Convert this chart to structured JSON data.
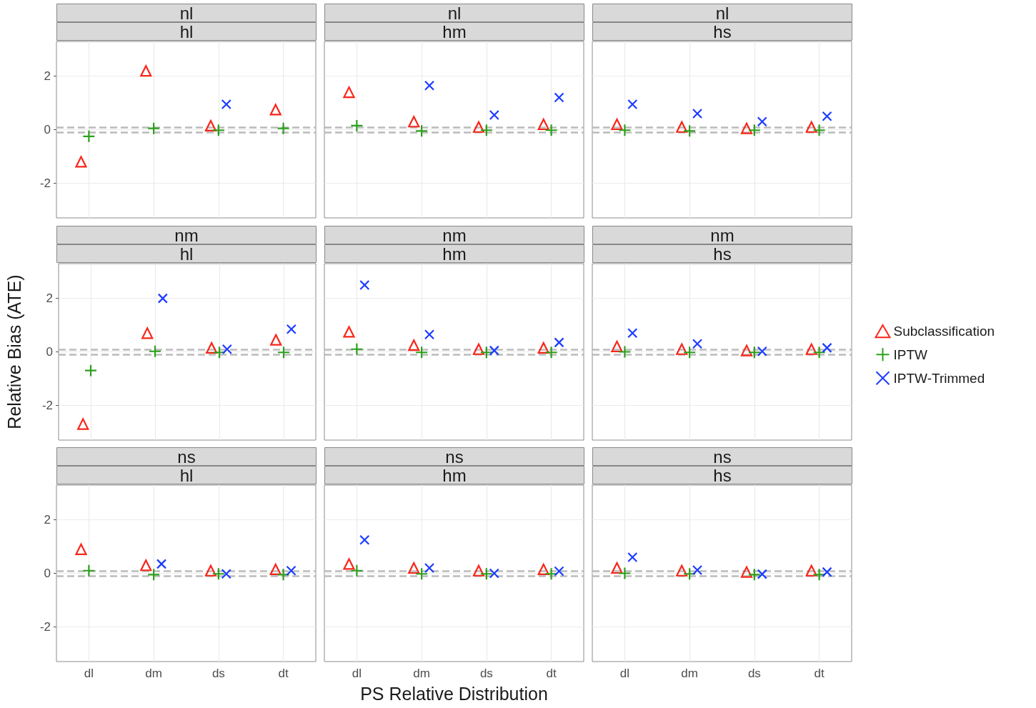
{
  "chart_data": [
    {
      "type": "scatter",
      "title": "nl",
      "subtitle": "hl",
      "categories": [
        "dl",
        "dm",
        "ds",
        "dt"
      ],
      "ylim": [
        -3.3,
        3.3
      ],
      "yticks": [
        -2,
        0,
        2
      ],
      "grid": true,
      "tick_labels": "y",
      "ref_lines": [
        {
          "axis": "y",
          "value": 0.1,
          "color": "#bbbbbb",
          "line_style": "dashed"
        },
        {
          "axis": "y",
          "value": -0.1,
          "color": "#bbbbbb",
          "line_style": "dashed"
        }
      ],
      "series": [
        {
          "color": "#f8261a",
          "marker": "triangle",
          "x": [
            "dl",
            "dm",
            "ds",
            "dt"
          ],
          "values": [
            -1.2,
            2.2,
            0.15,
            0.75
          ]
        },
        {
          "color": "#2ca01c",
          "marker": "cross",
          "x": [
            "dl",
            "dm",
            "ds",
            "dt"
          ],
          "values": [
            -0.25,
            0.05,
            -0.02,
            0.05
          ]
        },
        {
          "color": "#1c3cff",
          "marker": "x",
          "x": [
            "dl",
            "dm",
            "ds",
            "dt"
          ],
          "values": [
            null,
            null,
            0.95,
            null
          ]
        }
      ]
    },
    {
      "type": "scatter",
      "title": "nl",
      "subtitle": "hm",
      "categories": [
        "dl",
        "dm",
        "ds",
        "dt"
      ],
      "ylim": [
        -3.3,
        3.3
      ],
      "yticks": [
        -2,
        0,
        2
      ],
      "grid": true,
      "tick_labels": false,
      "ref_lines": [
        {
          "axis": "y",
          "value": 0.1,
          "color": "#bbbbbb",
          "line_style": "dashed"
        },
        {
          "axis": "y",
          "value": -0.1,
          "color": "#bbbbbb",
          "line_style": "dashed"
        }
      ],
      "series": [
        {
          "color": "#f8261a",
          "marker": "triangle",
          "x": [
            "dl",
            "dm",
            "ds",
            "dt"
          ],
          "values": [
            1.4,
            0.3,
            0.1,
            0.2
          ]
        },
        {
          "color": "#2ca01c",
          "marker": "cross",
          "x": [
            "dl",
            "dm",
            "ds",
            "dt"
          ],
          "values": [
            0.15,
            -0.05,
            -0.02,
            -0.02
          ]
        },
        {
          "color": "#1c3cff",
          "marker": "x",
          "x": [
            "dl",
            "dm",
            "ds",
            "dt"
          ],
          "values": [
            null,
            1.65,
            0.55,
            1.2
          ]
        }
      ]
    },
    {
      "type": "scatter",
      "title": "nl",
      "subtitle": "hs",
      "categories": [
        "dl",
        "dm",
        "ds",
        "dt"
      ],
      "ylim": [
        -3.3,
        3.3
      ],
      "yticks": [
        -2,
        0,
        2
      ],
      "grid": true,
      "tick_labels": false,
      "ref_lines": [
        {
          "axis": "y",
          "value": 0.1,
          "color": "#bbbbbb",
          "line_style": "dashed"
        },
        {
          "axis": "y",
          "value": -0.1,
          "color": "#bbbbbb",
          "line_style": "dashed"
        }
      ],
      "series": [
        {
          "color": "#f8261a",
          "marker": "triangle",
          "x": [
            "dl",
            "dm",
            "ds",
            "dt"
          ],
          "values": [
            0.2,
            0.1,
            0.05,
            0.1
          ]
        },
        {
          "color": "#2ca01c",
          "marker": "cross",
          "x": [
            "dl",
            "dm",
            "ds",
            "dt"
          ],
          "values": [
            -0.02,
            -0.05,
            -0.02,
            -0.02
          ]
        },
        {
          "color": "#1c3cff",
          "marker": "x",
          "x": [
            "dl",
            "dm",
            "ds",
            "dt"
          ],
          "values": [
            0.95,
            0.6,
            0.3,
            0.5
          ]
        }
      ]
    },
    {
      "type": "scatter",
      "title": "nm",
      "subtitle": "hl",
      "ylabel": "Relative Bias (ATE)",
      "categories": [
        "dl",
        "dm",
        "ds",
        "dt"
      ],
      "ylim": [
        -3.3,
        3.3
      ],
      "yticks": [
        -2,
        0,
        2
      ],
      "grid": true,
      "tick_labels": "y",
      "ref_lines": [
        {
          "axis": "y",
          "value": 0.1,
          "color": "#bbbbbb",
          "line_style": "dashed"
        },
        {
          "axis": "y",
          "value": -0.1,
          "color": "#bbbbbb",
          "line_style": "dashed"
        }
      ],
      "series": [
        {
          "color": "#f8261a",
          "marker": "triangle",
          "x": [
            "dl",
            "dm",
            "ds",
            "dt"
          ],
          "values": [
            -2.7,
            0.7,
            0.15,
            0.45
          ]
        },
        {
          "color": "#2ca01c",
          "marker": "cross",
          "x": [
            "dl",
            "dm",
            "ds",
            "dt"
          ],
          "values": [
            -0.7,
            0.02,
            -0.02,
            -0.02
          ]
        },
        {
          "color": "#1c3cff",
          "marker": "x",
          "x": [
            "dl",
            "dm",
            "ds",
            "dt"
          ],
          "values": [
            null,
            2.0,
            0.1,
            0.85
          ]
        }
      ]
    },
    {
      "type": "scatter",
      "title": "nm",
      "subtitle": "hm",
      "categories": [
        "dl",
        "dm",
        "ds",
        "dt"
      ],
      "ylim": [
        -3.3,
        3.3
      ],
      "yticks": [
        -2,
        0,
        2
      ],
      "grid": true,
      "tick_labels": false,
      "ref_lines": [
        {
          "axis": "y",
          "value": 0.1,
          "color": "#bbbbbb",
          "line_style": "dashed"
        },
        {
          "axis": "y",
          "value": -0.1,
          "color": "#bbbbbb",
          "line_style": "dashed"
        }
      ],
      "series": [
        {
          "color": "#f8261a",
          "marker": "triangle",
          "x": [
            "dl",
            "dm",
            "ds",
            "dt"
          ],
          "values": [
            0.75,
            0.25,
            0.1,
            0.15
          ]
        },
        {
          "color": "#2ca01c",
          "marker": "cross",
          "x": [
            "dl",
            "dm",
            "ds",
            "dt"
          ],
          "values": [
            0.1,
            -0.02,
            -0.02,
            -0.02
          ]
        },
        {
          "color": "#1c3cff",
          "marker": "x",
          "x": [
            "dl",
            "dm",
            "ds",
            "dt"
          ],
          "values": [
            2.5,
            0.65,
            0.05,
            0.35
          ]
        }
      ]
    },
    {
      "type": "scatter",
      "title": "nm",
      "subtitle": "hs",
      "categories": [
        "dl",
        "dm",
        "ds",
        "dt"
      ],
      "ylim": [
        -3.3,
        3.3
      ],
      "yticks": [
        -2,
        0,
        2
      ],
      "grid": true,
      "tick_labels": false,
      "legend": "right",
      "ref_lines": [
        {
          "axis": "y",
          "value": 0.1,
          "color": "#bbbbbb",
          "line_style": "dashed"
        },
        {
          "axis": "y",
          "value": -0.1,
          "color": "#bbbbbb",
          "line_style": "dashed"
        }
      ],
      "series": [
        {
          "name": "Subclassification",
          "color": "#f8261a",
          "marker": "triangle",
          "x": [
            "dl",
            "dm",
            "ds",
            "dt"
          ],
          "values": [
            0.2,
            0.1,
            0.05,
            0.1
          ]
        },
        {
          "name": "IPTW",
          "color": "#2ca01c",
          "marker": "cross",
          "x": [
            "dl",
            "dm",
            "ds",
            "dt"
          ],
          "values": [
            0.0,
            -0.02,
            -0.02,
            -0.02
          ]
        },
        {
          "name": "IPTW-Trimmed",
          "color": "#1c3cff",
          "marker": "x",
          "x": [
            "dl",
            "dm",
            "ds",
            "dt"
          ],
          "values": [
            0.7,
            0.3,
            0.02,
            0.15
          ]
        }
      ]
    },
    {
      "type": "scatter",
      "title": "ns",
      "subtitle": "hl",
      "categories": [
        "dl",
        "dm",
        "ds",
        "dt"
      ],
      "ylim": [
        -3.3,
        3.3
      ],
      "yticks": [
        -2,
        0,
        2
      ],
      "grid": true,
      "ref_lines": [
        {
          "axis": "y",
          "value": 0.1,
          "color": "#bbbbbb",
          "line_style": "dashed"
        },
        {
          "axis": "y",
          "value": -0.1,
          "color": "#bbbbbb",
          "line_style": "dashed"
        }
      ],
      "series": [
        {
          "color": "#f8261a",
          "marker": "triangle",
          "x": [
            "dl",
            "dm",
            "ds",
            "dt"
          ],
          "values": [
            0.9,
            0.3,
            0.1,
            0.15
          ]
        },
        {
          "color": "#2ca01c",
          "marker": "cross",
          "x": [
            "dl",
            "dm",
            "ds",
            "dt"
          ],
          "values": [
            0.1,
            -0.05,
            -0.02,
            -0.05
          ]
        },
        {
          "color": "#1c3cff",
          "marker": "x",
          "x": [
            "dl",
            "dm",
            "ds",
            "dt"
          ],
          "values": [
            null,
            0.35,
            -0.02,
            0.1
          ]
        }
      ]
    },
    {
      "type": "scatter",
      "title": "ns",
      "subtitle": "hm",
      "xlabel": "PS Relative Distribution",
      "categories": [
        "dl",
        "dm",
        "ds",
        "dt"
      ],
      "ylim": [
        -3.3,
        3.3
      ],
      "yticks": [
        -2,
        0,
        2
      ],
      "grid": true,
      "tick_labels": "x",
      "ref_lines": [
        {
          "axis": "y",
          "value": 0.1,
          "color": "#bbbbbb",
          "line_style": "dashed"
        },
        {
          "axis": "y",
          "value": -0.1,
          "color": "#bbbbbb",
          "line_style": "dashed"
        }
      ],
      "series": [
        {
          "color": "#f8261a",
          "marker": "triangle",
          "x": [
            "dl",
            "dm",
            "ds",
            "dt"
          ],
          "values": [
            0.35,
            0.2,
            0.1,
            0.15
          ]
        },
        {
          "color": "#2ca01c",
          "marker": "cross",
          "x": [
            "dl",
            "dm",
            "ds",
            "dt"
          ],
          "values": [
            0.1,
            -0.02,
            -0.02,
            -0.02
          ]
        },
        {
          "color": "#1c3cff",
          "marker": "x",
          "x": [
            "dl",
            "dm",
            "ds",
            "dt"
          ],
          "values": [
            1.25,
            0.2,
            0.0,
            0.08
          ]
        }
      ]
    },
    {
      "type": "scatter",
      "title": "ns",
      "subtitle": "hs",
      "categories": [
        "dl",
        "dm",
        "ds",
        "dt"
      ],
      "ylim": [
        -3.3,
        3.3
      ],
      "yticks": [
        -2,
        0,
        2
      ],
      "grid": true,
      "tick_labels": "x",
      "ref_lines": [
        {
          "axis": "y",
          "value": 0.1,
          "color": "#bbbbbb",
          "line_style": "dashed"
        },
        {
          "axis": "y",
          "value": -0.1,
          "color": "#bbbbbb",
          "line_style": "dashed"
        }
      ],
      "series": [
        {
          "color": "#f8261a",
          "marker": "triangle",
          "x": [
            "dl",
            "dm",
            "ds",
            "dt"
          ],
          "values": [
            0.2,
            0.1,
            0.05,
            0.1
          ]
        },
        {
          "color": "#2ca01c",
          "marker": "cross",
          "x": [
            "dl",
            "dm",
            "ds",
            "dt"
          ],
          "values": [
            0.0,
            -0.02,
            -0.05,
            -0.05
          ]
        },
        {
          "color": "#1c3cff",
          "marker": "x",
          "x": [
            "dl",
            "dm",
            "ds",
            "dt"
          ],
          "values": [
            0.6,
            0.12,
            -0.03,
            0.05
          ]
        }
      ]
    }
  ]
}
